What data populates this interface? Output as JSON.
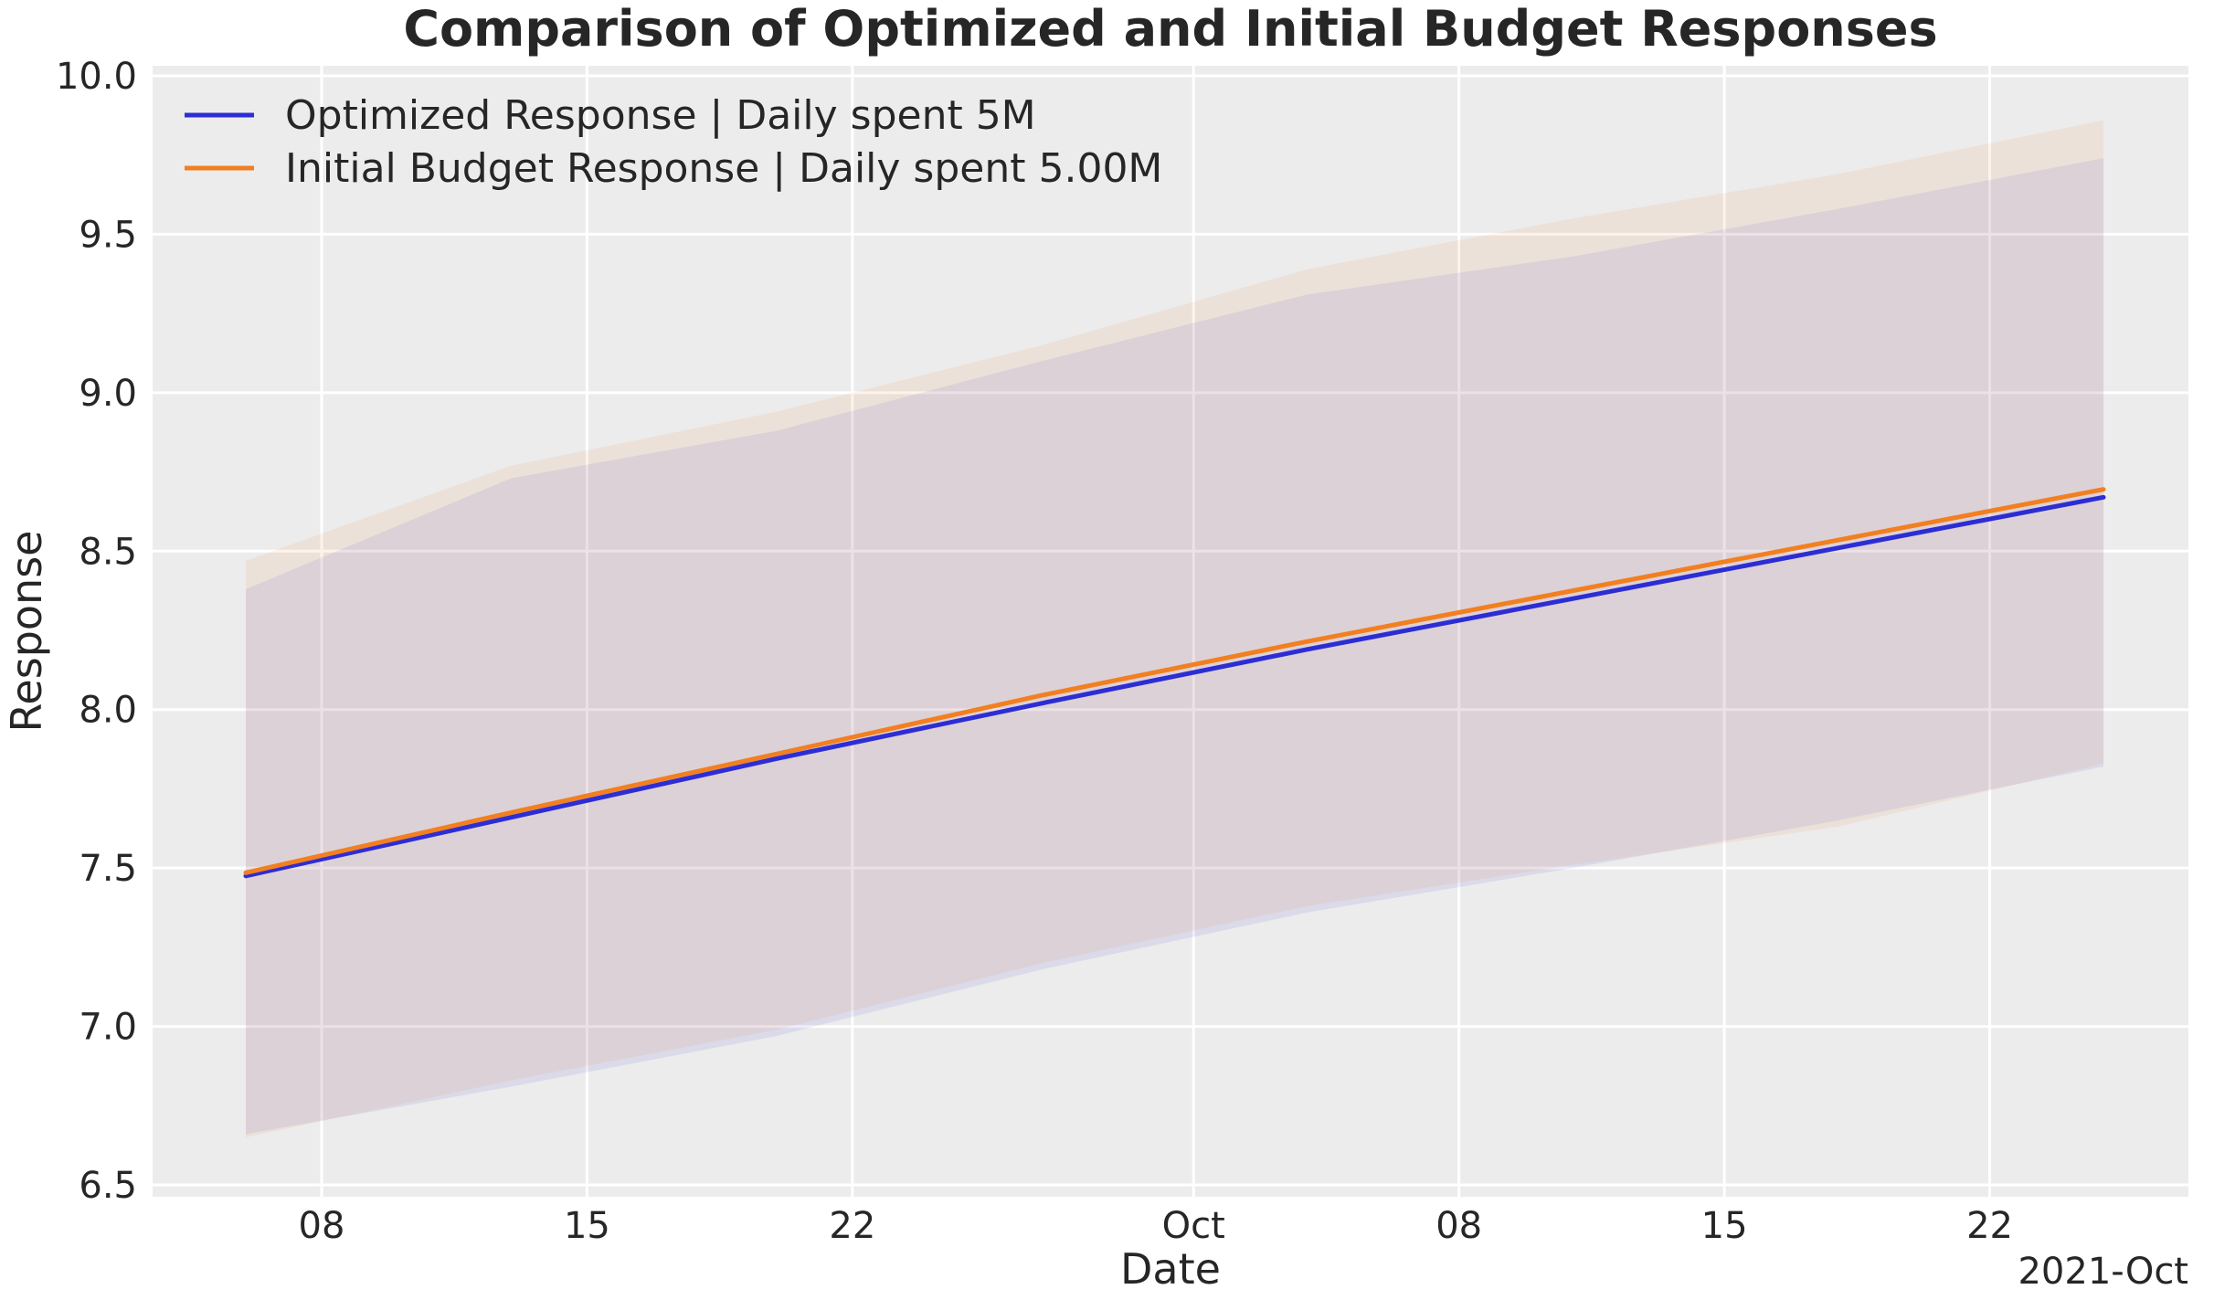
{
  "title": "Comparison of Optimized and Initial Budget Responses",
  "axes": {
    "xlabel": "Date",
    "ylabel": "Response",
    "x_offset_label": "2021-Oct"
  },
  "chart_data": {
    "type": "line",
    "title": "Comparison of Optimized and Initial Budget Responses",
    "xlabel": "Date",
    "ylabel": "Response",
    "x_offset_label": "2021-Oct",
    "grid": true,
    "legend_position": "upper left",
    "band_opacity": 0.09,
    "x_dates": [
      "2021-09-06",
      "2021-09-13",
      "2021-09-20",
      "2021-09-27",
      "2021-10-04",
      "2021-10-11",
      "2021-10-18",
      "2021-10-25"
    ],
    "day_offsets": [
      0,
      7,
      14,
      21,
      28,
      35,
      42,
      49
    ],
    "series": [
      {
        "name": "Optimized Response | Daily spent 5M",
        "color": "#2d2dd4",
        "mean": [
          7.475,
          7.66,
          7.845,
          8.02,
          8.19,
          8.35,
          8.51,
          8.67
        ],
        "upper": [
          8.38,
          8.73,
          8.88,
          9.1,
          9.31,
          9.43,
          9.58,
          9.74
        ],
        "lower": [
          6.66,
          6.81,
          6.97,
          7.18,
          7.36,
          7.5,
          7.65,
          7.82
        ]
      },
      {
        "name": "Initial Budget Response | Daily spent 5.00M",
        "color": "#f27f20",
        "mean": [
          7.485,
          7.675,
          7.86,
          8.045,
          8.215,
          8.375,
          8.535,
          8.695
        ],
        "upper": [
          8.47,
          8.77,
          8.94,
          9.15,
          9.39,
          9.55,
          9.69,
          9.86
        ],
        "lower": [
          6.65,
          6.83,
          6.99,
          7.2,
          7.38,
          7.51,
          7.63,
          7.83
        ]
      }
    ],
    "x_ticks": [
      {
        "label": "08",
        "day": 2
      },
      {
        "label": "15",
        "day": 9
      },
      {
        "label": "22",
        "day": 16
      },
      {
        "label": "Oct",
        "day": 25
      },
      {
        "label": "08",
        "day": 32
      },
      {
        "label": "15",
        "day": 39
      },
      {
        "label": "22",
        "day": 46
      }
    ],
    "y_ticks": [
      6.5,
      7.0,
      7.5,
      8.0,
      8.5,
      9.0,
      9.5,
      10.0
    ],
    "ylim": [
      6.44,
      10.06
    ],
    "colors": {
      "plot_bg": "#ececec",
      "grid": "#ffffff",
      "text": "#262626",
      "optimized_line": "#2d2dd4",
      "initial_line": "#f27f20"
    }
  }
}
